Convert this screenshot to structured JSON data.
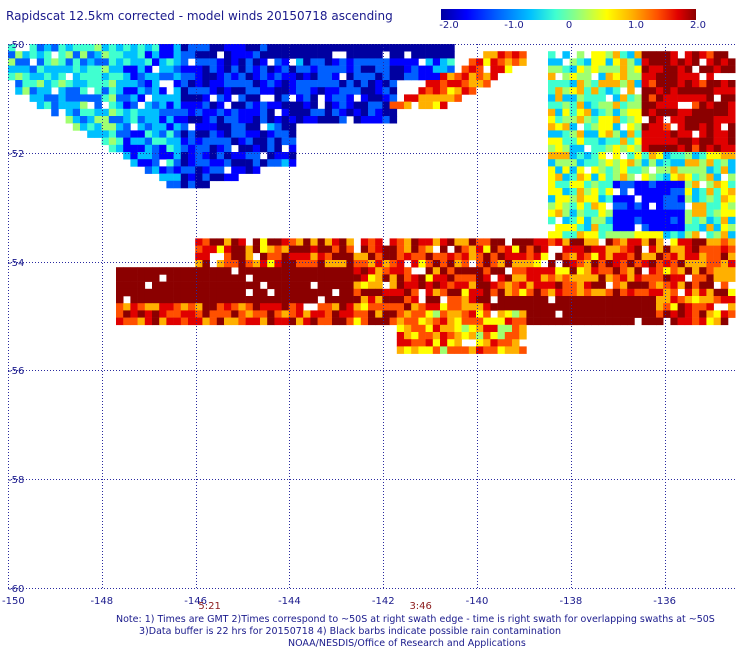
{
  "header": {
    "title": "Rapidscat 12.5km corrected - model winds 20150718 ascending"
  },
  "colorbar": {
    "ticks": [
      "-2.0",
      "-1.0",
      "0",
      "1.0",
      "2.0"
    ],
    "range": [
      -2.0,
      2.0
    ],
    "colors": [
      "#0000a0",
      "#0000ff",
      "#0060ff",
      "#00c0ff",
      "#40ffd0",
      "#a0ff70",
      "#ffff00",
      "#ffb000",
      "#ff5000",
      "#e00000",
      "#8b0000"
    ]
  },
  "map": {
    "lon_range": [
      -150,
      -134.5
    ],
    "lat_range": [
      -60,
      -50
    ],
    "x_ticks": [
      "-150",
      "-148",
      "-146",
      "-144",
      "-142",
      "-140",
      "-138",
      "-136"
    ],
    "y_ticks": [
      "-50",
      "-52",
      "-54",
      "-56",
      "-58",
      "-60"
    ],
    "grid_style": "dotted",
    "time_labels": [
      {
        "text": "5:21",
        "lon": -146
      },
      {
        "text": "3:46",
        "lon": -141.5
      }
    ]
  },
  "notes": {
    "line1": "Note: 1) Times are GMT 2)Times correspond to ~50S at right swath edge - time is right swath for overlapping swaths at ~50S",
    "line2": "3)Data buffer is 22 hrs for 20150718 4) Black barbs indicate possible rain contamination",
    "line3": "NOAA/NESDIS/Office of Research and Applications"
  }
}
